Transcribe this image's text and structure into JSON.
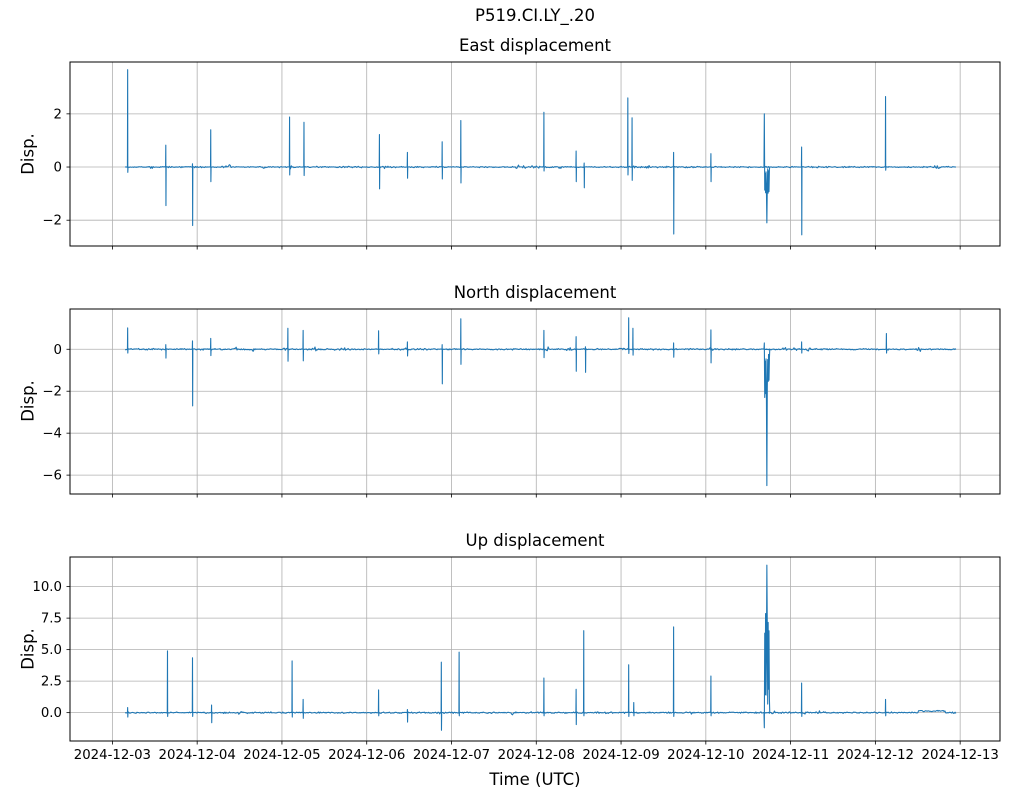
{
  "figure": {
    "title": "P519.CI.LY_.20",
    "xlabel": "Time (UTC)",
    "line_color": "#1f77b4",
    "grid_color": "#b0b0b0",
    "spine_color": "#000000",
    "background": "#ffffff"
  },
  "xaxis": {
    "tick_days": [
      0,
      1,
      2,
      3,
      4,
      5,
      6,
      7,
      8,
      9,
      10
    ],
    "tick_labels": [
      "2024-12-03",
      "2024-12-04",
      "2024-12-05",
      "2024-12-06",
      "2024-12-07",
      "2024-12-08",
      "2024-12-09",
      "2024-12-10",
      "2024-12-11",
      "2024-12-12",
      "2024-12-13"
    ],
    "xlim_days": [
      -0.5,
      10.47
    ],
    "epoch": "2024-12-03 00:00 UTC"
  },
  "chart_data": [
    {
      "type": "line",
      "title": "East displacement",
      "ylabel": "Disp.",
      "ylim": [
        -2.97,
        3.95
      ],
      "ytick_values": [
        -2,
        0,
        2
      ],
      "ytick_labels": [
        "−2",
        "0",
        "2"
      ],
      "grid": true,
      "baseline": 0,
      "noise_amp": 0.035,
      "data_start_day": 0.15,
      "data_end_day": 9.95,
      "seed": 42,
      "bumps": [],
      "spikes": [
        [
          0.18,
          3.66,
          -0.2
        ],
        [
          0.63,
          0.82,
          -1.45
        ],
        [
          0.945,
          0.12,
          -2.2
        ],
        [
          1.16,
          1.4,
          -0.55
        ],
        [
          2.09,
          1.88,
          -0.3
        ],
        [
          2.26,
          1.68,
          -0.32
        ],
        [
          3.15,
          1.22,
          -0.82
        ],
        [
          3.48,
          0.55,
          -0.42
        ],
        [
          3.89,
          0.95,
          -0.45
        ],
        [
          4.11,
          1.75,
          -0.6
        ],
        [
          5.09,
          2.06,
          -0.15
        ],
        [
          5.47,
          0.6,
          -0.55
        ],
        [
          5.565,
          0.15,
          -0.78
        ],
        [
          6.08,
          2.6,
          -0.3
        ],
        [
          6.13,
          1.85,
          -0.5
        ],
        [
          6.62,
          0.55,
          -2.52
        ],
        [
          7.06,
          0.5,
          -0.55
        ],
        [
          7.69,
          2.0,
          -2.1,
          -1.05,
          0.06
        ],
        [
          8.13,
          0.75,
          -2.55
        ],
        [
          9.12,
          2.65,
          -0.12
        ]
      ]
    },
    {
      "type": "line",
      "title": "North displacement",
      "ylabel": "Disp.",
      "ylim": [
        -6.9,
        1.92
      ],
      "ytick_values": [
        -6,
        -4,
        -2,
        0
      ],
      "ytick_labels": [
        "−6",
        "−4",
        "−2",
        "0"
      ],
      "grid": true,
      "baseline": 0,
      "noise_amp": 0.05,
      "data_start_day": 0.15,
      "data_end_day": 9.95,
      "seed": 43,
      "bumps": [],
      "spikes": [
        [
          0.18,
          1.02,
          -0.18
        ],
        [
          0.63,
          0.22,
          -0.42
        ],
        [
          0.945,
          0.4,
          -2.7
        ],
        [
          1.16,
          0.52,
          -0.3
        ],
        [
          2.07,
          1.0,
          -0.57
        ],
        [
          2.25,
          0.9,
          -0.55
        ],
        [
          3.14,
          0.88,
          -0.22
        ],
        [
          3.48,
          0.35,
          -0.32
        ],
        [
          3.89,
          0.22,
          -1.65
        ],
        [
          4.11,
          1.45,
          -0.72
        ],
        [
          5.09,
          0.9,
          -0.4
        ],
        [
          5.47,
          0.6,
          -1.05
        ],
        [
          5.58,
          0.12,
          -1.1
        ],
        [
          6.09,
          1.5,
          -0.2
        ],
        [
          6.14,
          1.0,
          -0.28
        ],
        [
          6.62,
          0.3,
          -0.38
        ],
        [
          7.06,
          0.92,
          -0.65
        ],
        [
          7.69,
          0.3,
          -6.5,
          -2.4,
          0.06
        ],
        [
          8.13,
          0.35,
          -0.18
        ],
        [
          9.13,
          0.75,
          -0.18
        ]
      ]
    },
    {
      "type": "line",
      "title": "Up displacement",
      "ylabel": "Disp.",
      "ylim": [
        -2.25,
        12.35
      ],
      "ytick_values": [
        0,
        2.5,
        5,
        7.5,
        10
      ],
      "ytick_labels": [
        "0.0",
        "2.5",
        "5.0",
        "7.5",
        "10.0"
      ],
      "grid": true,
      "baseline": 0,
      "noise_amp": 0.08,
      "data_start_day": 0.15,
      "data_end_day": 9.95,
      "seed": 44,
      "bumps": [
        [
          9.5,
          9.82,
          0.13
        ]
      ],
      "spikes": [
        [
          0.18,
          0.4,
          -0.35
        ],
        [
          0.65,
          4.9,
          -0.3
        ],
        [
          0.945,
          4.35,
          -0.3
        ],
        [
          1.17,
          0.6,
          -0.8
        ],
        [
          2.12,
          4.1,
          -0.35
        ],
        [
          2.25,
          1.05,
          -0.45
        ],
        [
          3.14,
          1.8,
          -0.25
        ],
        [
          3.48,
          0.25,
          -0.75
        ],
        [
          3.88,
          4.0,
          -1.4
        ],
        [
          4.09,
          4.8,
          -0.25
        ],
        [
          5.09,
          2.75,
          -0.25
        ],
        [
          5.47,
          1.85,
          -0.95
        ],
        [
          5.56,
          6.5,
          -0.25
        ],
        [
          6.09,
          3.8,
          -0.3
        ],
        [
          6.15,
          0.8,
          -0.25
        ],
        [
          6.62,
          6.8,
          -0.3
        ],
        [
          7.06,
          2.9,
          -0.25
        ],
        [
          7.69,
          11.7,
          -1.2,
          8.05,
          0.06
        ],
        [
          8.13,
          2.35,
          -0.3
        ],
        [
          9.12,
          1.05,
          -0.25
        ]
      ]
    }
  ]
}
